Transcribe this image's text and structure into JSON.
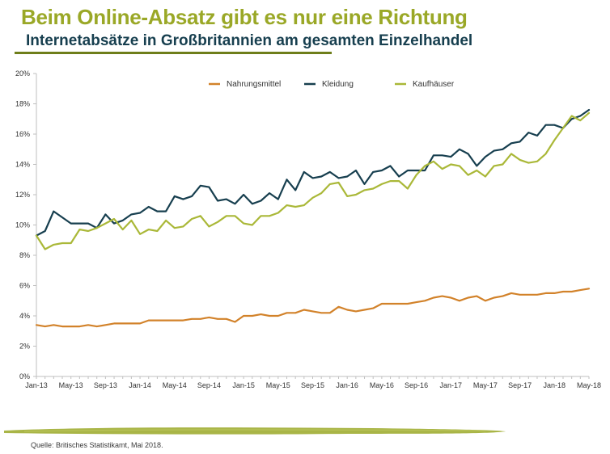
{
  "title": "Beim Online-Absatz gibt es nur eine Richtung",
  "subtitle": "Internetabsätze in Großbritannien am gesamten Einzelhandel",
  "source": "Quelle: Britisches Statistikamt, Mai 2018.",
  "colors": {
    "title": "#9aa827",
    "subtitle": "#173f4f",
    "axis": "#bfbfbf"
  },
  "chart_data": {
    "type": "line",
    "ylim": [
      0,
      20
    ],
    "yticks": [
      0,
      2,
      4,
      6,
      8,
      10,
      12,
      14,
      16,
      18,
      20
    ],
    "ytick_labels": [
      "0%",
      "2%",
      "4%",
      "6%",
      "8%",
      "10%",
      "12%",
      "14%",
      "16%",
      "18%",
      "20%"
    ],
    "x_count": 65,
    "xtick_indices": [
      0,
      4,
      8,
      12,
      16,
      20,
      24,
      28,
      32,
      36,
      40,
      44,
      48,
      52,
      56,
      60,
      64
    ],
    "xtick_labels": [
      "Jan-13",
      "May-13",
      "Sep-13",
      "Jan-14",
      "May-14",
      "Sep-14",
      "Jan-15",
      "May-15",
      "Sep-15",
      "Jan-16",
      "May-16",
      "Sep-16",
      "Jan-17",
      "May-17",
      "Sep-17",
      "Jan-18",
      "May-18"
    ],
    "legend_position": "top",
    "series": [
      {
        "name": "Nahrungsmittel",
        "color": "#d2822a",
        "values": [
          3.4,
          3.3,
          3.4,
          3.3,
          3.3,
          3.3,
          3.4,
          3.3,
          3.4,
          3.5,
          3.5,
          3.5,
          3.5,
          3.7,
          3.7,
          3.7,
          3.7,
          3.7,
          3.8,
          3.8,
          3.9,
          3.8,
          3.8,
          3.6,
          4.0,
          4.0,
          4.1,
          4.0,
          4.0,
          4.2,
          4.2,
          4.4,
          4.3,
          4.2,
          4.2,
          4.6,
          4.4,
          4.3,
          4.4,
          4.5,
          4.8,
          4.8,
          4.8,
          4.8,
          4.9,
          5.0,
          5.2,
          5.3,
          5.2,
          5.0,
          5.2,
          5.3,
          5.0,
          5.2,
          5.3,
          5.5,
          5.4,
          5.4,
          5.4,
          5.5,
          5.5,
          5.6,
          5.6,
          5.7,
          5.8
        ]
      },
      {
        "name": "Kleidung",
        "color": "#173f4f",
        "values": [
          9.3,
          9.6,
          10.9,
          10.5,
          10.1,
          10.1,
          10.1,
          9.8,
          10.7,
          10.1,
          10.3,
          10.7,
          10.8,
          11.2,
          10.9,
          10.9,
          11.9,
          11.7,
          11.9,
          12.6,
          12.5,
          11.6,
          11.7,
          11.4,
          12.0,
          11.4,
          11.6,
          12.1,
          11.7,
          13.0,
          12.3,
          13.5,
          13.1,
          13.2,
          13.5,
          13.1,
          13.2,
          13.6,
          12.7,
          13.5,
          13.6,
          13.9,
          13.2,
          13.6,
          13.6,
          13.6,
          14.6,
          14.6,
          14.5,
          15.0,
          14.7,
          13.9,
          14.5,
          14.9,
          15.0,
          15.4,
          15.5,
          16.1,
          15.9,
          16.6,
          16.6,
          16.4,
          17.0,
          17.2,
          17.6
        ]
      },
      {
        "name": "Kaufhäuser",
        "color": "#aab838",
        "values": [
          9.3,
          8.4,
          8.7,
          8.8,
          8.8,
          9.7,
          9.6,
          9.8,
          10.1,
          10.4,
          9.7,
          10.3,
          9.4,
          9.7,
          9.6,
          10.3,
          9.8,
          9.9,
          10.4,
          10.6,
          9.9,
          10.2,
          10.6,
          10.6,
          10.1,
          10.0,
          10.6,
          10.6,
          10.8,
          11.3,
          11.2,
          11.3,
          11.8,
          12.1,
          12.7,
          12.8,
          11.9,
          12.0,
          12.3,
          12.4,
          12.7,
          12.9,
          12.9,
          12.4,
          13.3,
          13.9,
          14.2,
          13.7,
          14.0,
          13.9,
          13.3,
          13.6,
          13.2,
          13.9,
          14.0,
          14.7,
          14.3,
          14.1,
          14.2,
          14.7,
          15.6,
          16.4,
          17.2,
          16.9,
          17.4
        ]
      }
    ]
  }
}
